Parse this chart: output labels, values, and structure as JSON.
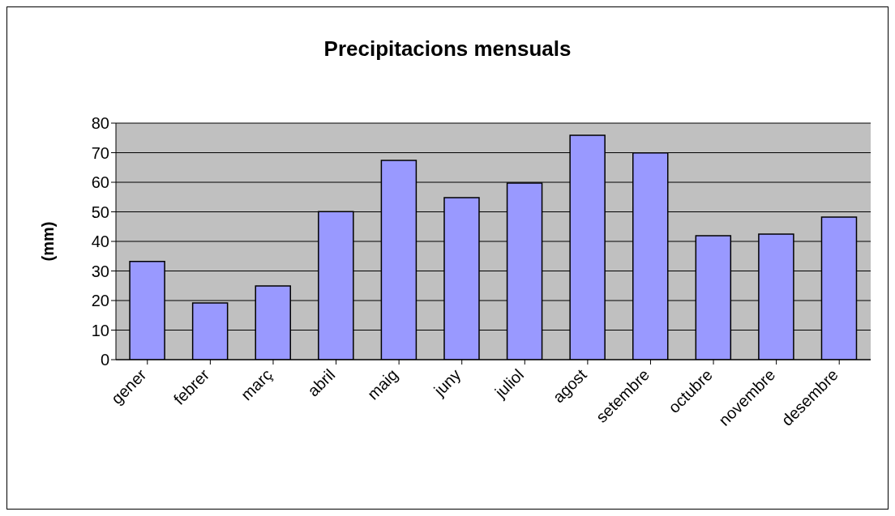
{
  "chart_data": {
    "type": "bar",
    "title": "Precipitacions mensuals",
    "ylabel": "(mm)",
    "categories": [
      "gener",
      "febrer",
      "març",
      "abril",
      "maig",
      "juny",
      "juliol",
      "agost",
      "setembre",
      "octubre",
      "novembre",
      "desembre"
    ],
    "values": [
      33.2,
      19.2,
      24.9,
      50.1,
      67.4,
      54.8,
      59.7,
      75.9,
      69.9,
      41.9,
      42.5,
      48.2
    ],
    "color": "#9999ff",
    "ylim": [
      0,
      80
    ],
    "yticks": [
      0,
      10,
      20,
      30,
      40,
      50,
      60,
      70,
      80
    ],
    "grid": "y"
  }
}
